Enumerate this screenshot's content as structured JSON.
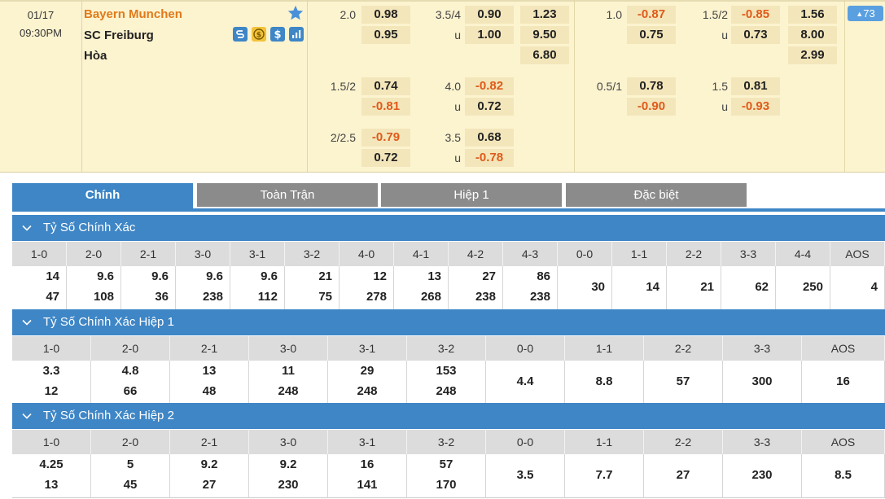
{
  "match": {
    "date": "01/17",
    "time": "09:30PM",
    "home": "Bayern Munchen",
    "away": "SC Freiburg",
    "draw": "Hòa",
    "favorite_icon": "star-icon",
    "feature_icons": [
      "s-icon",
      "coin-icon",
      "dollar-icon",
      "stats-icon"
    ],
    "more_count": "73",
    "colors": {
      "accent": "#3e86c6",
      "home": "#e07a1a",
      "negative": "#e05a1b",
      "header_bg": "#fcf3cf"
    }
  },
  "odds": {
    "ft_handicap": [
      {
        "line": "2.0",
        "home": "0.98",
        "away": "0.95"
      },
      {
        "line": "1.5/2",
        "home": "0.74",
        "away": "-0.81"
      },
      {
        "line": "2/2.5",
        "home": "-0.79",
        "away": "0.72"
      }
    ],
    "ft_overunder": [
      {
        "line": "3.5/4",
        "over": "0.90",
        "u": "u",
        "under": "1.00"
      },
      {
        "line": "4.0",
        "over": "-0.82",
        "u": "u",
        "under": "0.72"
      },
      {
        "line": "3.5",
        "over": "0.68",
        "u": "u",
        "under": "-0.78"
      }
    ],
    "ft_1x2": {
      "home": "1.23",
      "away": "9.50",
      "draw": "6.80"
    },
    "h1_handicap": [
      {
        "line": "1.0",
        "home": "-0.87",
        "away": "0.75"
      },
      {
        "line": "0.5/1",
        "home": "0.78",
        "away": "-0.90"
      }
    ],
    "h1_overunder": [
      {
        "line": "1.5/2",
        "over": "-0.85",
        "u": "u",
        "under": "0.73"
      },
      {
        "line": "1.5",
        "over": "0.81",
        "u": "u",
        "under": "-0.93"
      }
    ],
    "h1_1x2": {
      "home": "1.56",
      "away": "8.00",
      "draw": "2.99"
    }
  },
  "tabs": [
    "Chính",
    "Toàn Trận",
    "Hiệp 1",
    "Đặc biệt"
  ],
  "sections": [
    {
      "title": "Tỷ Số Chính Xác",
      "scores": [
        "1-0",
        "2-0",
        "2-1",
        "3-0",
        "3-1",
        "3-2",
        "4-0",
        "4-1",
        "4-2",
        "4-3",
        "0-0",
        "1-1",
        "2-2",
        "3-3",
        "4-4",
        "AOS"
      ],
      "home": [
        "14",
        "9.6",
        "9.6",
        "9.6",
        "9.6",
        "21",
        "12",
        "13",
        "27",
        "86",
        "30",
        "14",
        "21",
        "62",
        "250",
        "4"
      ],
      "away": [
        "47",
        "108",
        "36",
        "238",
        "112",
        "75",
        "278",
        "268",
        "238",
        "238",
        "",
        "",
        "",
        "",
        "",
        ""
      ]
    },
    {
      "title": "Tỷ Số Chính Xác Hiệp 1",
      "scores": [
        "1-0",
        "2-0",
        "2-1",
        "3-0",
        "3-1",
        "3-2",
        "0-0",
        "1-1",
        "2-2",
        "3-3",
        "AOS"
      ],
      "home": [
        "3.3",
        "4.8",
        "13",
        "11",
        "29",
        "153",
        "4.4",
        "8.8",
        "57",
        "300",
        "16"
      ],
      "away": [
        "12",
        "66",
        "48",
        "248",
        "248",
        "248",
        "",
        "",
        "",
        "",
        ""
      ]
    },
    {
      "title": "Tỷ Số Chính Xác Hiệp 2",
      "scores": [
        "1-0",
        "2-0",
        "2-1",
        "3-0",
        "3-1",
        "3-2",
        "0-0",
        "1-1",
        "2-2",
        "3-3",
        "AOS"
      ],
      "home": [
        "4.25",
        "5",
        "9.2",
        "9.2",
        "16",
        "57",
        "3.5",
        "7.7",
        "27",
        "230",
        "8.5"
      ],
      "away": [
        "13",
        "45",
        "27",
        "230",
        "141",
        "170",
        "",
        "",
        "",
        "",
        ""
      ]
    }
  ]
}
